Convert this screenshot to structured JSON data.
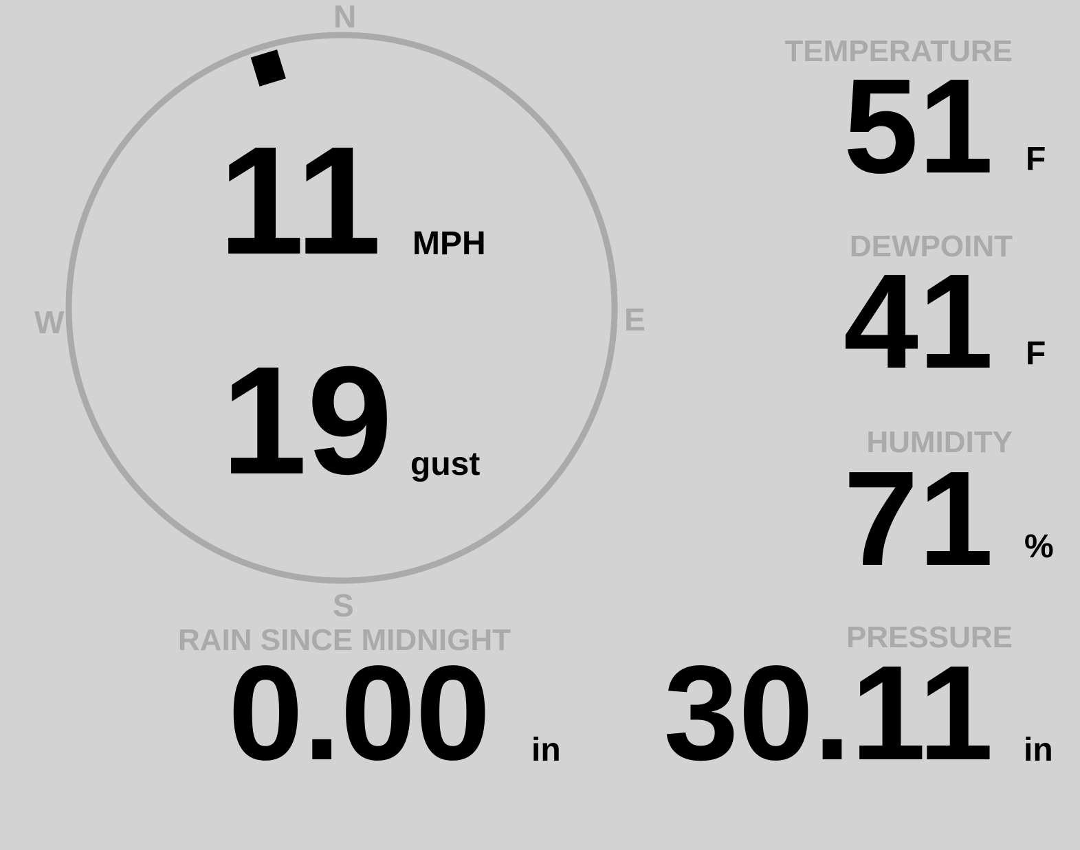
{
  "wind": {
    "speed": "11",
    "speed_unit": "MPH",
    "gust": "19",
    "gust_label": "gust",
    "direction_deg": 343,
    "compass": {
      "n": "N",
      "e": "E",
      "s": "S",
      "w": "W"
    }
  },
  "temperature": {
    "label": "TEMPERATURE",
    "value": "51",
    "unit": "F"
  },
  "dewpoint": {
    "label": "DEWPOINT",
    "value": "41",
    "unit": "F"
  },
  "humidity": {
    "label": "HUMIDITY",
    "value": "71",
    "unit": "%"
  },
  "pressure": {
    "label": "PRESSURE",
    "value": "30.11",
    "unit": "in"
  },
  "rain": {
    "label": "RAIN SINCE MIDNIGHT",
    "value": "0.00",
    "unit": "in"
  },
  "colors": {
    "background": "#d3d3d3",
    "label": "#aaaaaa",
    "value": "#000000"
  }
}
